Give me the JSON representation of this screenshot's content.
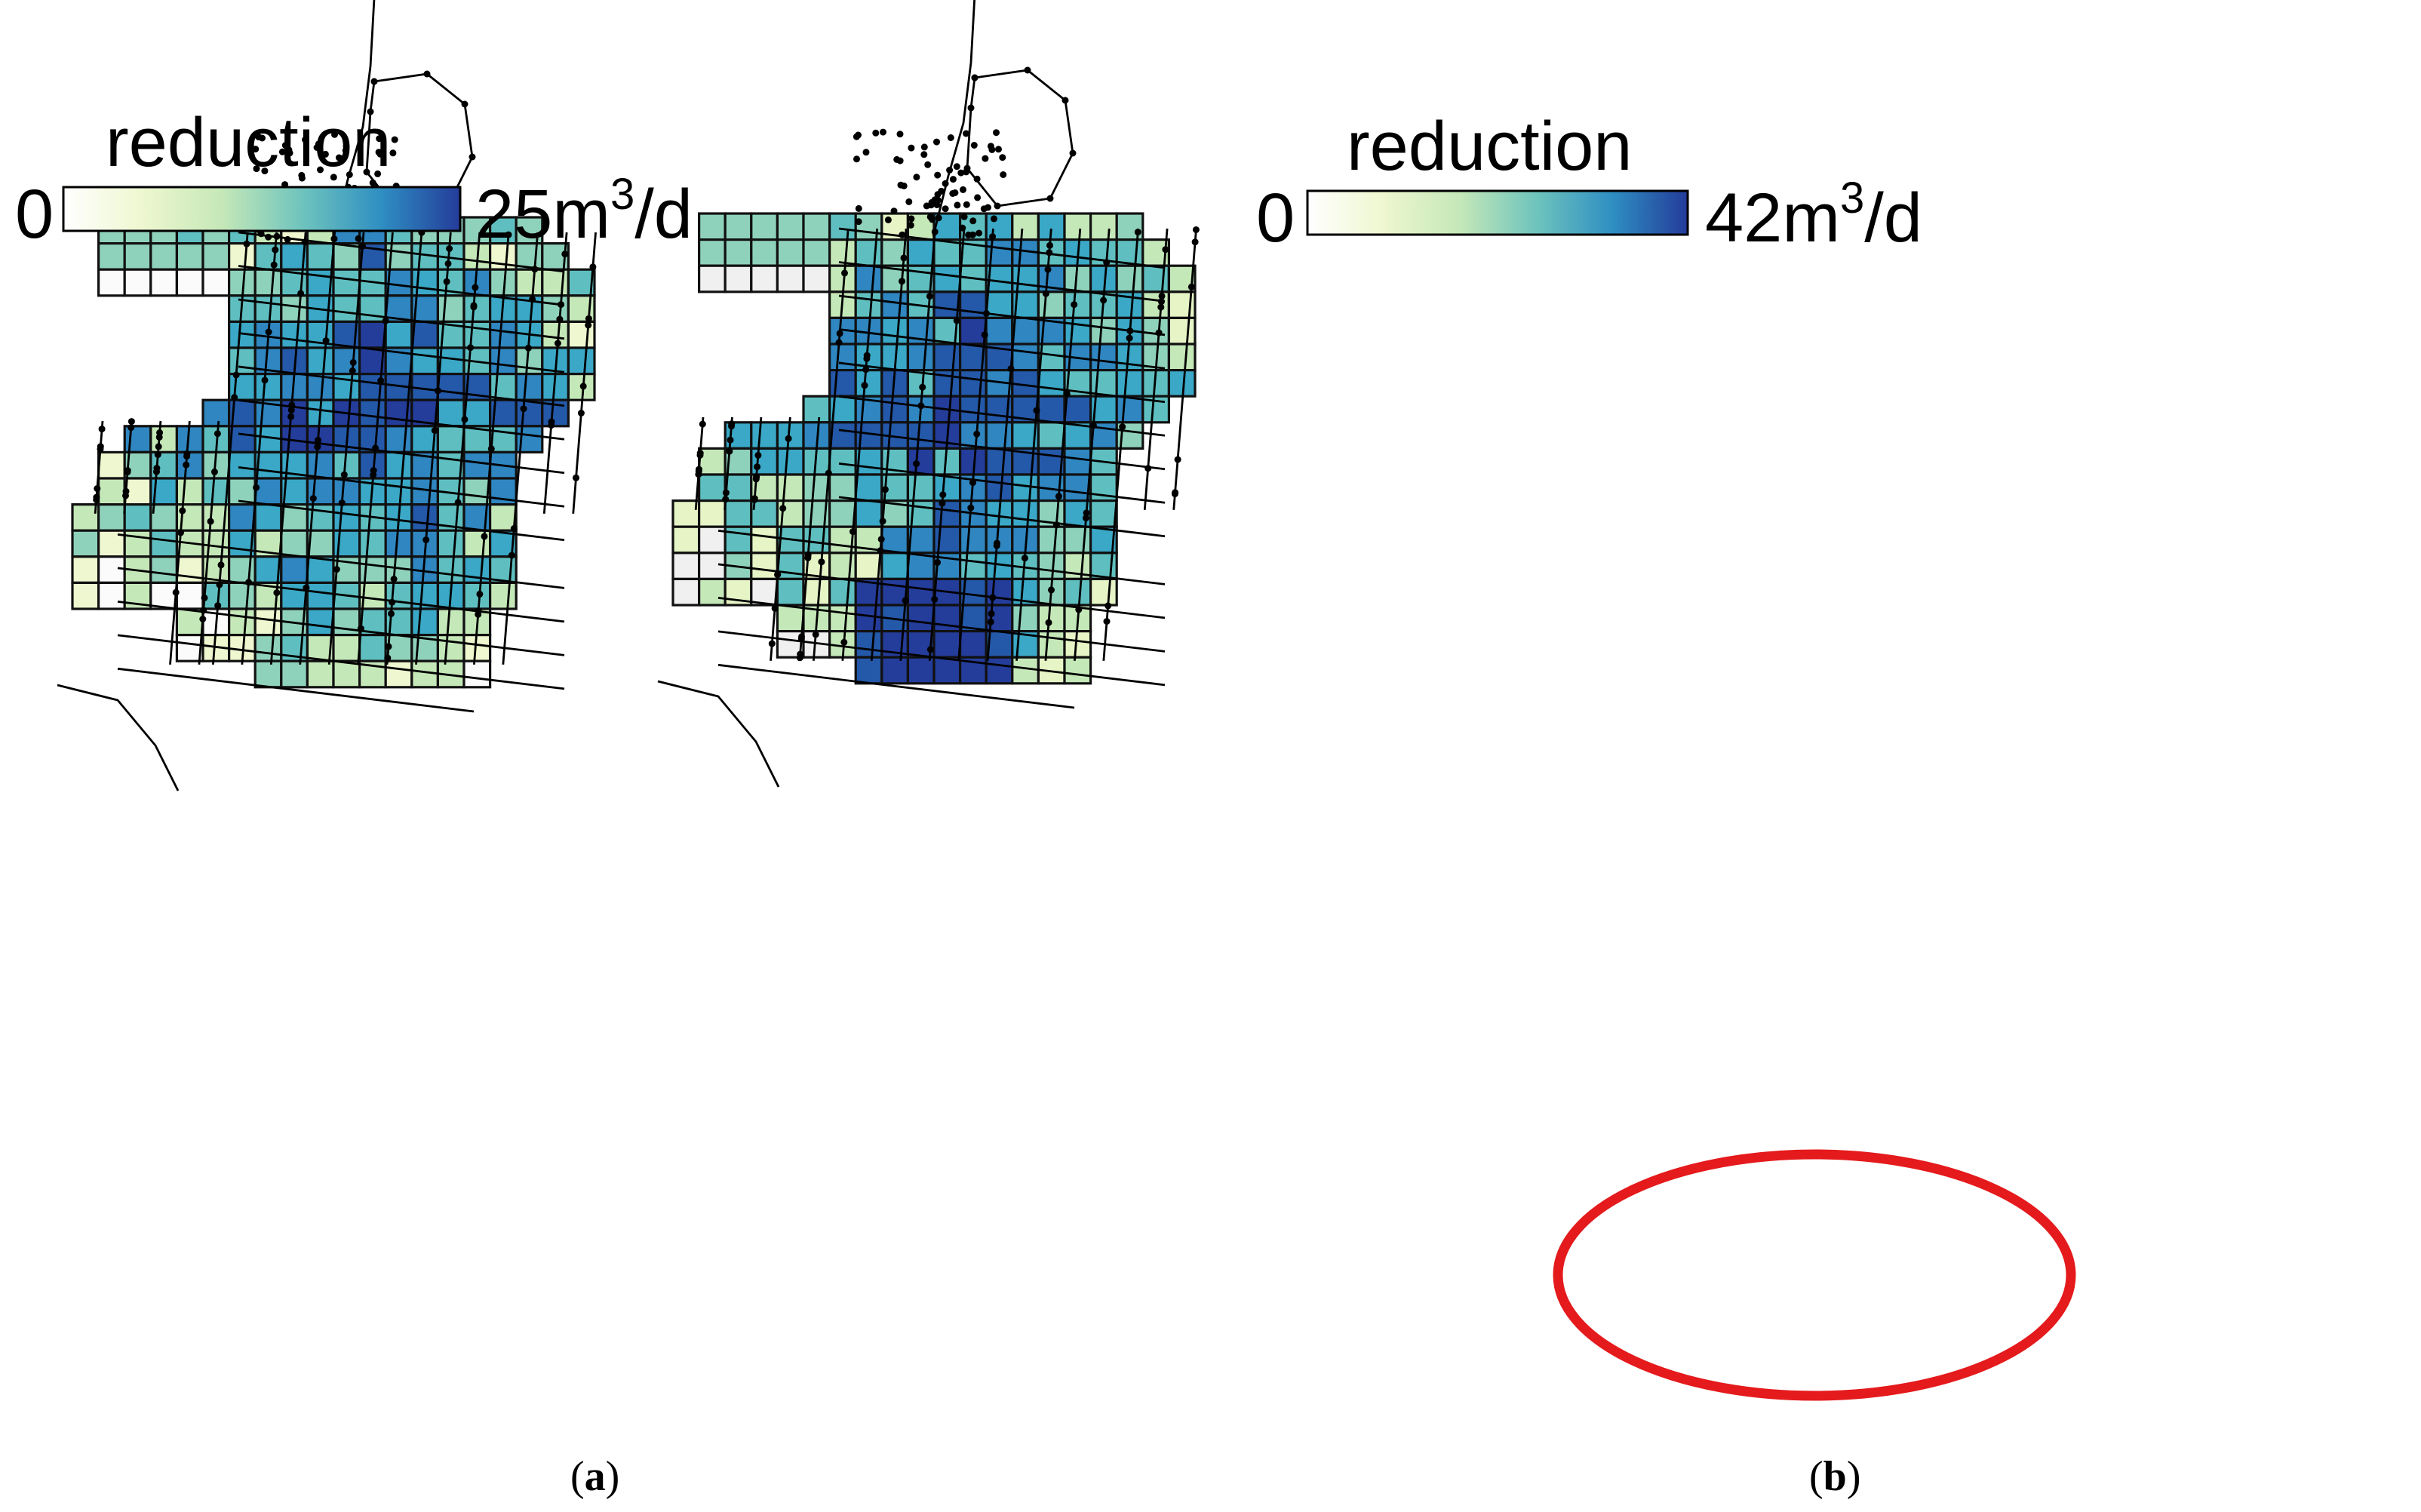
{
  "figure": {
    "panels": [
      {
        "id": "a",
        "caption_label": "a",
        "legend": {
          "title": "reduction",
          "min_label": "0",
          "max_number": "25",
          "unit_base": "m",
          "unit_sup": "3",
          "unit_rest": "/d",
          "color_stops": [
            "#ffffff",
            "#eef7cf",
            "#c5e8b8",
            "#6fc4bd",
            "#2f8fc2",
            "#243c9a"
          ]
        },
        "empty_color": "#fbfbfb",
        "highlight": false
      },
      {
        "id": "b",
        "caption_label": "b",
        "legend": {
          "title": "reduction",
          "min_label": "0",
          "max_number": "42",
          "unit_base": "m",
          "unit_sup": "3",
          "unit_rest": "/d",
          "color_stops": [
            "#ffffff",
            "#eef7cf",
            "#c5e8b8",
            "#6fc4bd",
            "#2f8fc2",
            "#243c9a"
          ]
        },
        "empty_color": "#f0f0f0",
        "highlight": true,
        "highlight_color": "#e41a1c"
      }
    ]
  }
}
